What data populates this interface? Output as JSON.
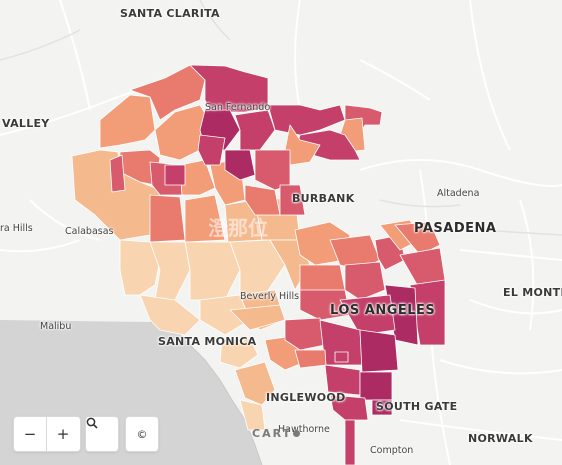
{
  "map": {
    "basemap_labels": {
      "santa_clarita": "SANTA CLARITA",
      "valley": "VALLEY",
      "san_fernando": "San Fernando",
      "burbank": "BURBANK",
      "altadena": "Altadena",
      "pasadena": "PASADENA",
      "calabasas": "Calabasas",
      "hills": "ra Hills",
      "el_monte": "EL MONTE",
      "beverly_hills": "Beverly Hills",
      "malibu": "Malibu",
      "los_angeles": "LOS ANGELES",
      "santa_monica": "SANTA MONICA",
      "inglewood": "INGLEWOOD",
      "south_gate": "SOUTH GATE",
      "hawthorne": "Hawthorne",
      "norwalk": "NORWALK",
      "compton": "Compton"
    },
    "attribution_brand": "CART",
    "watermark": "澄那位",
    "colors": {
      "water": "#d4d4d4",
      "land": "#f3f3f1",
      "road": "#ffffff",
      "road_major": "#e2e2e2",
      "choropleth_scale": [
        "#f8d5b0",
        "#f5b98e",
        "#f29c78",
        "#e87b6d",
        "#d75b6c",
        "#c4406a",
        "#ad2b63"
      ]
    }
  },
  "controls": {
    "zoom_out": "−",
    "zoom_in": "+",
    "search_icon": "search-icon",
    "attribution_icon": "©"
  }
}
